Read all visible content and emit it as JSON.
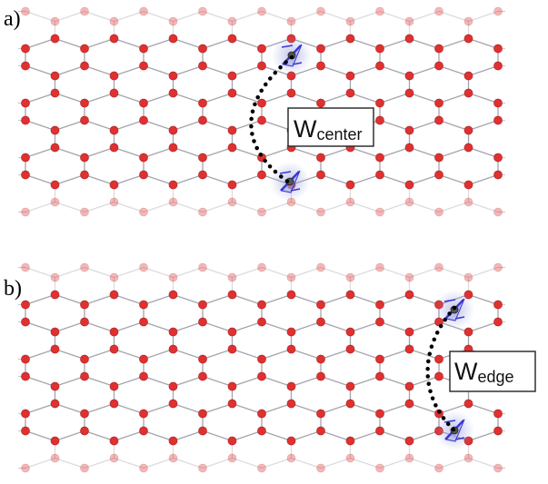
{
  "colors": {
    "atom": "#e03030",
    "atom_edge": "#9c1a1a",
    "bond": "#9a9aa6",
    "defect": "#3b35d6",
    "defect_glow": "#9aa3e0",
    "fade": "#ffffff"
  },
  "panels": [
    {
      "id": "a",
      "label": "a)",
      "symbol": "W",
      "subscript": "center"
    },
    {
      "id": "b",
      "label": "b)",
      "symbol": "W",
      "subscript": "edge"
    }
  ]
}
